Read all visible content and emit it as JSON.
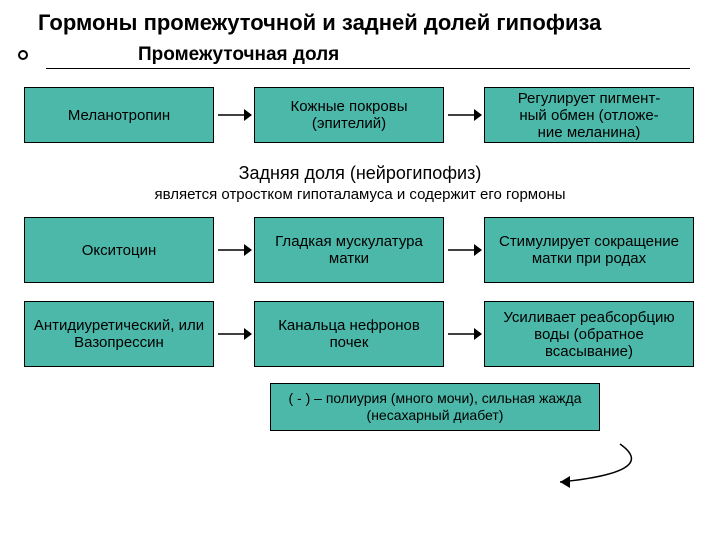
{
  "colors": {
    "box_fill": "#4bb8a9",
    "text": "#000000",
    "bg": "#ffffff",
    "line": "#000000"
  },
  "title": "Гормоны промежуточной и задней долей гипофиза",
  "section1": {
    "heading": "Промежуточная доля",
    "row": {
      "col1": "Меланотропин",
      "col2": "Кожные покровы (эпителий)",
      "col3": "Регулирует пигмент-\nный обмен (отложе-\nние меланина)"
    }
  },
  "section2": {
    "heading": "Задняя доля (нейрогипофиз)",
    "note": "является отростком гипоталамуса и содержит его гормоны",
    "rows": [
      {
        "col1": "Окситоцин",
        "col2": "Гладкая мускулатура матки",
        "col3": "Стимулирует сокращение матки при родах"
      },
      {
        "col1": "Антидиуретический, или Вазопрессин",
        "col2": "Канальца нефронов почек",
        "col3": "Усиливает реабсорбцию воды (обратное всасывание)"
      }
    ],
    "footnote": "( - ) – полиурия (много мочи), сильная жажда (несахарный диабет)"
  },
  "layout": {
    "box_widths": {
      "c1": 190,
      "c2": 190,
      "c3": 210
    },
    "arrow_width": 40,
    "row_height_1": 56,
    "row_height_2a": 66,
    "row_height_2b": 66,
    "footnote_width": 330,
    "arrow_fontsize": 15
  }
}
